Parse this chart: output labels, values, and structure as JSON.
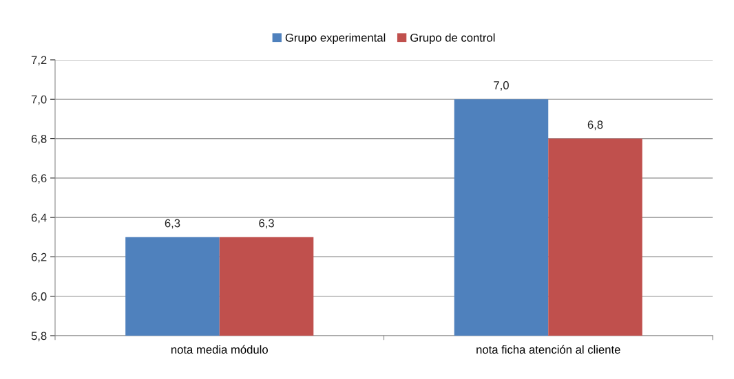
{
  "chart_data": {
    "type": "bar",
    "categories": [
      "nota media módulo",
      "nota ficha atención al cliente"
    ],
    "series": [
      {
        "name": "Grupo experimental",
        "color": "#4f81bd",
        "values": [
          6.3,
          7.0
        ],
        "value_labels": [
          "6,3",
          "7,0"
        ]
      },
      {
        "name": "Grupo de control",
        "color": "#c0504d",
        "values": [
          6.3,
          6.8
        ],
        "value_labels": [
          "6,3",
          "6,8"
        ]
      }
    ],
    "ylim": [
      5.8,
      7.2
    ],
    "yticks": [
      {
        "value": 5.8,
        "label": "5,8"
      },
      {
        "value": 6.0,
        "label": "6,0"
      },
      {
        "value": 6.2,
        "label": "6,2"
      },
      {
        "value": 6.4,
        "label": "6,4"
      },
      {
        "value": 6.6,
        "label": "6,6"
      },
      {
        "value": 6.8,
        "label": "6,8"
      },
      {
        "value": 7.0,
        "label": "7,0"
      },
      {
        "value": 7.2,
        "label": "7,2"
      }
    ],
    "grid": "y",
    "legend": "top"
  }
}
